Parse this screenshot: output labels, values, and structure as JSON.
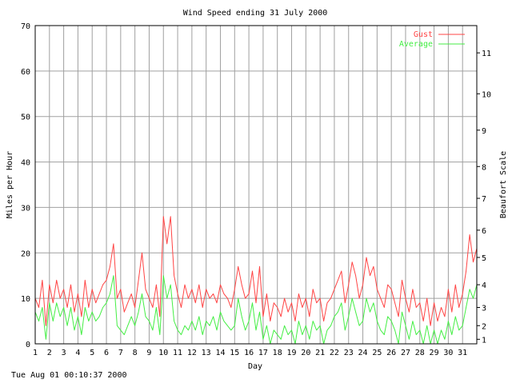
{
  "footer_timestamp": "Tue Aug 01 00:10:37 2000",
  "colors": {
    "gust": "#ff4444",
    "average": "#44ee44",
    "grid": "#a0a0a0",
    "axis": "#000000"
  },
  "chart_data": {
    "type": "line",
    "title": "Wind Speed ending 31 July 2000",
    "xlabel": "Day",
    "ylabel": "Miles per Hour",
    "y2label": "Beaufort Scale",
    "xlim": [
      1,
      32
    ],
    "ylim": [
      0,
      70
    ],
    "x_ticks": [
      "1",
      "2",
      "3",
      "4",
      "5",
      "6",
      "7",
      "8",
      "9",
      "10",
      "11",
      "12",
      "13",
      "14",
      "15",
      "16",
      "17",
      "18",
      "19",
      "20",
      "21",
      "22",
      "23",
      "24",
      "25",
      "26",
      "27",
      "28",
      "29",
      "30",
      "31"
    ],
    "y_ticks": [
      0,
      10,
      20,
      30,
      40,
      50,
      60,
      70
    ],
    "beaufort_ticks": [
      {
        "label": "1",
        "mph": 1
      },
      {
        "label": "2",
        "mph": 4
      },
      {
        "label": "3",
        "mph": 8
      },
      {
        "label": "4",
        "mph": 13
      },
      {
        "label": "5",
        "mph": 19
      },
      {
        "label": "6",
        "mph": 25
      },
      {
        "label": "7",
        "mph": 32
      },
      {
        "label": "8",
        "mph": 39
      },
      {
        "label": "9",
        "mph": 47
      },
      {
        "label": "10",
        "mph": 55
      },
      {
        "label": "11",
        "mph": 64
      }
    ],
    "legend_position": "top-right",
    "grid": true,
    "series": [
      {
        "name": "Gust",
        "color": "#ff4444",
        "x": [
          1.0,
          1.25,
          1.5,
          1.75,
          2.0,
          2.25,
          2.5,
          2.75,
          3.0,
          3.25,
          3.5,
          3.75,
          4.0,
          4.25,
          4.5,
          4.75,
          5.0,
          5.25,
          5.5,
          5.75,
          6.0,
          6.25,
          6.5,
          6.75,
          7.0,
          7.25,
          7.5,
          7.75,
          8.0,
          8.25,
          8.5,
          8.75,
          9.0,
          9.25,
          9.5,
          9.75,
          10.0,
          10.25,
          10.5,
          10.75,
          11.0,
          11.25,
          11.5,
          11.75,
          12.0,
          12.25,
          12.5,
          12.75,
          13.0,
          13.25,
          13.5,
          13.75,
          14.0,
          14.25,
          14.5,
          14.75,
          15.0,
          15.25,
          15.5,
          15.75,
          16.0,
          16.25,
          16.5,
          16.75,
          17.0,
          17.25,
          17.5,
          17.75,
          18.0,
          18.25,
          18.5,
          18.75,
          19.0,
          19.25,
          19.5,
          19.75,
          20.0,
          20.25,
          20.5,
          20.75,
          21.0,
          21.25,
          21.5,
          21.75,
          22.0,
          22.25,
          22.5,
          22.75,
          23.0,
          23.25,
          23.5,
          23.75,
          24.0,
          24.25,
          24.5,
          24.75,
          25.0,
          25.25,
          25.5,
          25.75,
          26.0,
          26.25,
          26.5,
          26.75,
          27.0,
          27.25,
          27.5,
          27.75,
          28.0,
          28.25,
          28.5,
          28.75,
          29.0,
          29.25,
          29.5,
          29.75,
          30.0,
          30.25,
          30.5,
          30.75,
          31.0,
          31.25,
          31.5,
          31.75,
          32.0
        ],
        "values": [
          10,
          8,
          14,
          4,
          13,
          9,
          14,
          10,
          12,
          8,
          13,
          7,
          11,
          6,
          14,
          8,
          12,
          9,
          11,
          13,
          14,
          17,
          22,
          10,
          12,
          7,
          9,
          11,
          8,
          14,
          20,
          12,
          10,
          8,
          13,
          6,
          28,
          22,
          28,
          15,
          11,
          8,
          13,
          10,
          12,
          9,
          13,
          8,
          12,
          10,
          11,
          9,
          13,
          11,
          10,
          8,
          12,
          17,
          13,
          10,
          11,
          16,
          9,
          17,
          6,
          11,
          5,
          9,
          8,
          6,
          10,
          7,
          9,
          5,
          11,
          8,
          10,
          6,
          12,
          9,
          10,
          5,
          9,
          10,
          12,
          14,
          16,
          9,
          13,
          18,
          15,
          10,
          13,
          19,
          15,
          17,
          12,
          10,
          8,
          13,
          12,
          9,
          6,
          14,
          10,
          7,
          12,
          8,
          9,
          5,
          10,
          4,
          9,
          5,
          8,
          6,
          12,
          7,
          13,
          8,
          11,
          16,
          24,
          18,
          21
        ]
      },
      {
        "name": "Average",
        "color": "#44ee44",
        "x": [
          1.0,
          1.25,
          1.5,
          1.75,
          2.0,
          2.25,
          2.5,
          2.75,
          3.0,
          3.25,
          3.5,
          3.75,
          4.0,
          4.25,
          4.5,
          4.75,
          5.0,
          5.25,
          5.5,
          5.75,
          6.0,
          6.25,
          6.5,
          6.75,
          7.0,
          7.25,
          7.5,
          7.75,
          8.0,
          8.25,
          8.5,
          8.75,
          9.0,
          9.25,
          9.5,
          9.75,
          10.0,
          10.25,
          10.5,
          10.75,
          11.0,
          11.25,
          11.5,
          11.75,
          12.0,
          12.25,
          12.5,
          12.75,
          13.0,
          13.25,
          13.5,
          13.75,
          14.0,
          14.25,
          14.5,
          14.75,
          15.0,
          15.25,
          15.5,
          15.75,
          16.0,
          16.25,
          16.5,
          16.75,
          17.0,
          17.25,
          17.5,
          17.75,
          18.0,
          18.25,
          18.5,
          18.75,
          19.0,
          19.25,
          19.5,
          19.75,
          20.0,
          20.25,
          20.5,
          20.75,
          21.0,
          21.25,
          21.5,
          21.75,
          22.0,
          22.25,
          22.5,
          22.75,
          23.0,
          23.25,
          23.5,
          23.75,
          24.0,
          24.25,
          24.5,
          24.75,
          25.0,
          25.25,
          25.5,
          25.75,
          26.0,
          26.25,
          26.5,
          26.75,
          27.0,
          27.25,
          27.5,
          27.75,
          28.0,
          28.25,
          28.5,
          28.75,
          29.0,
          29.25,
          29.5,
          29.75,
          30.0,
          30.25,
          30.5,
          30.75,
          31.0,
          31.25,
          31.5,
          31.75,
          32.0
        ],
        "values": [
          7,
          5,
          8,
          1,
          9,
          5,
          9,
          6,
          8,
          4,
          8,
          3,
          6,
          2,
          8,
          5,
          7,
          5,
          6,
          8,
          9,
          11,
          15,
          4,
          3,
          2,
          4,
          6,
          4,
          7,
          11,
          6,
          5,
          3,
          8,
          2,
          15,
          10,
          13,
          5,
          3,
          2,
          4,
          3,
          5,
          3,
          6,
          2,
          5,
          4,
          6,
          3,
          7,
          5,
          4,
          3,
          4,
          10,
          6,
          3,
          5,
          9,
          3,
          7,
          1,
          4,
          0,
          3,
          2,
          1,
          4,
          2,
          3,
          0,
          5,
          2,
          4,
          1,
          5,
          3,
          4,
          0,
          3,
          4,
          6,
          7,
          9,
          3,
          6,
          10,
          7,
          4,
          5,
          10,
          7,
          9,
          5,
          3,
          2,
          6,
          5,
          3,
          0,
          7,
          4,
          1,
          5,
          2,
          3,
          0,
          4,
          0,
          3,
          0,
          3,
          1,
          5,
          2,
          6,
          3,
          4,
          8,
          12,
          10,
          13
        ]
      }
    ]
  }
}
